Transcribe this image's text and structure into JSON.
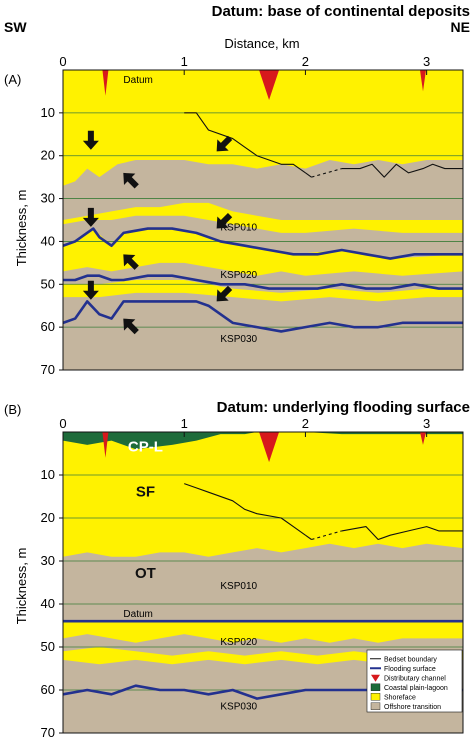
{
  "header": {
    "left_direction": "SW",
    "right_direction": "NE",
    "xaxis_label": "Distance, km",
    "x_ticks": [
      "0",
      "1",
      "2",
      "3"
    ]
  },
  "colors": {
    "shoreface": "#fff200",
    "offshore_transition": "#c4b59e",
    "coastal_plain_lagoon": "#1e6b3a",
    "distributary_channel": "#d7191c",
    "flooding_surface": "#23318f",
    "bedset_boundary": "#111111",
    "grid": "#3d7d3a"
  },
  "panel_a": {
    "label": "(A)",
    "title": "Datum: base of continental deposits",
    "ylabel": "Thickness, m",
    "y_ticks": [
      "10",
      "20",
      "30",
      "40",
      "50",
      "60",
      "70"
    ],
    "datum_label": "Datum",
    "surface_labels": [
      "KSP010",
      "KSP020",
      "KSP030"
    ]
  },
  "panel_b": {
    "label": "(B)",
    "title": "Datum: underlying flooding surface",
    "ylabel": "Thickness, m",
    "y_ticks": [
      "10",
      "20",
      "30",
      "40",
      "50",
      "60",
      "70"
    ],
    "datum_label": "Datum",
    "surface_labels": [
      "KSP010",
      "KSP020",
      "KSP030"
    ],
    "zones": [
      "CP-L",
      "SF",
      "OT"
    ]
  },
  "legend": {
    "items": [
      {
        "label": "Bedset boundary",
        "kind": "black-line"
      },
      {
        "label": "Flooding surface",
        "kind": "blue-line"
      },
      {
        "label": "Distributary channel",
        "kind": "red-triangle"
      },
      {
        "label": "Coastal plain-lagoon",
        "kind": "green-box"
      },
      {
        "label": "Shoreface",
        "kind": "yellow-box"
      },
      {
        "label": "Offshore transition",
        "kind": "tan-box"
      }
    ]
  },
  "chart_data": [
    {
      "type": "area",
      "panel": "A",
      "title": "Datum: base of continental deposits",
      "xlabel": "Distance, km",
      "ylabel": "Thickness, m",
      "xlim": [
        0,
        3.3
      ],
      "ylim": [
        70,
        0
      ],
      "y_reversed": true,
      "grid": true,
      "channels": [
        {
          "x": 0.35,
          "depth": 6
        },
        {
          "x": 1.7,
          "depth": 7
        },
        {
          "x": 2.97,
          "depth": 5
        }
      ],
      "series": [
        {
          "name": "Bedset boundary",
          "x": [
            1.0,
            1.1,
            1.15,
            1.2,
            1.4,
            1.5,
            1.6,
            1.8,
            1.9,
            1.95,
            2.0
          ],
          "y": [
            10,
            10,
            12,
            14,
            16,
            18,
            20,
            22,
            22,
            23,
            24
          ]
        },
        {
          "name": "Bedset boundary",
          "x": [
            2.0,
            2.05
          ],
          "y": [
            24,
            25
          ]
        },
        {
          "name": "Bedset boundary",
          "x": [
            2.05,
            2.3
          ],
          "y": [
            25,
            23
          ]
        },
        {
          "name": "Bedset boundary",
          "x": [
            2.3,
            2.45,
            2.55,
            2.65,
            2.75,
            2.85,
            2.97,
            3.05,
            3.15,
            3.25,
            3.3
          ],
          "y": [
            23,
            23,
            22,
            25,
            22,
            24,
            23,
            22,
            23,
            23,
            23
          ]
        },
        {
          "name": "Flooding surface",
          "surface": "KSP010",
          "x": [
            0,
            0.1,
            0.2,
            0.25,
            0.3,
            0.4,
            0.5,
            0.7,
            0.9,
            1.1,
            1.3,
            1.5,
            1.7,
            1.9,
            2.1,
            2.3,
            2.5,
            2.7,
            2.9,
            3.1,
            3.3
          ],
          "y": [
            41,
            40,
            38,
            37,
            39,
            41,
            38,
            37,
            37,
            38,
            40,
            41,
            42,
            43,
            43,
            42,
            43,
            44,
            43,
            43,
            43
          ]
        },
        {
          "name": "Flooding surface",
          "surface": "KSP020",
          "x": [
            0,
            0.1,
            0.2,
            0.3,
            0.4,
            0.5,
            0.7,
            0.9,
            1.1,
            1.3,
            1.5,
            1.7,
            1.9,
            2.1,
            2.3,
            2.5,
            2.7,
            2.9,
            3.1,
            3.3
          ],
          "y": [
            49,
            49,
            48,
            48,
            49,
            49,
            48,
            48,
            49,
            50,
            50,
            51,
            51,
            51,
            50,
            51,
            51,
            50,
            51,
            51
          ]
        },
        {
          "name": "Flooding surface",
          "surface": "KSP030",
          "x": [
            0,
            0.1,
            0.2,
            0.3,
            0.4,
            0.5,
            0.7,
            0.9,
            1.1,
            1.2,
            1.4,
            1.6,
            1.8,
            2.0,
            2.2,
            2.4,
            2.6,
            2.8,
            3.0,
            3.2,
            3.3
          ],
          "y": [
            59,
            58,
            54,
            57,
            58,
            54,
            54,
            54,
            54,
            55,
            59,
            60,
            61,
            60,
            59,
            60,
            60,
            59,
            59,
            59,
            59
          ]
        }
      ]
    },
    {
      "type": "area",
      "panel": "B",
      "title": "Datum: underlying flooding surface",
      "xlabel": "Distance, km",
      "ylabel": "Thickness, m",
      "xlim": [
        0,
        3.3
      ],
      "ylim": [
        70,
        0
      ],
      "y_reversed": true,
      "grid": true,
      "channels": [
        {
          "x": 0.35,
          "depth": 6
        },
        {
          "x": 1.7,
          "depth": 7
        },
        {
          "x": 2.97,
          "depth": 3
        }
      ],
      "series": [
        {
          "name": "Bedset boundary",
          "x": [
            1.0,
            1.1,
            1.2,
            1.4,
            1.5,
            1.6,
            1.8,
            1.9,
            2.0
          ],
          "y": [
            12,
            13,
            14,
            16,
            18,
            19,
            20,
            22,
            24
          ]
        },
        {
          "name": "Bedset boundary",
          "x": [
            2.0,
            2.05
          ],
          "y": [
            24,
            25
          ]
        },
        {
          "name": "Bedset boundary",
          "x": [
            2.05,
            2.3
          ],
          "y": [
            25,
            23
          ]
        },
        {
          "name": "Bedset boundary",
          "x": [
            2.3,
            2.5,
            2.6,
            2.7,
            2.85,
            3.0,
            3.1,
            3.2,
            3.3
          ],
          "y": [
            23,
            22,
            25,
            24,
            23,
            22,
            23,
            23,
            23
          ]
        },
        {
          "name": "Flooding surface",
          "surface": "KSP010",
          "x": [
            0,
            3.3
          ],
          "y": [
            44,
            44
          ]
        },
        {
          "name": "Flooding surface",
          "surface": "KSP030",
          "x": [
            0,
            0.2,
            0.4,
            0.6,
            0.8,
            1.0,
            1.2,
            1.4,
            1.6,
            1.8,
            2.0,
            2.2,
            2.4,
            2.6,
            2.8,
            3.0,
            3.2,
            3.3
          ],
          "y": [
            61,
            60,
            61,
            59,
            60,
            60,
            61,
            60,
            62,
            61,
            60,
            60,
            60,
            60,
            60,
            60,
            60,
            60
          ]
        }
      ]
    }
  ]
}
